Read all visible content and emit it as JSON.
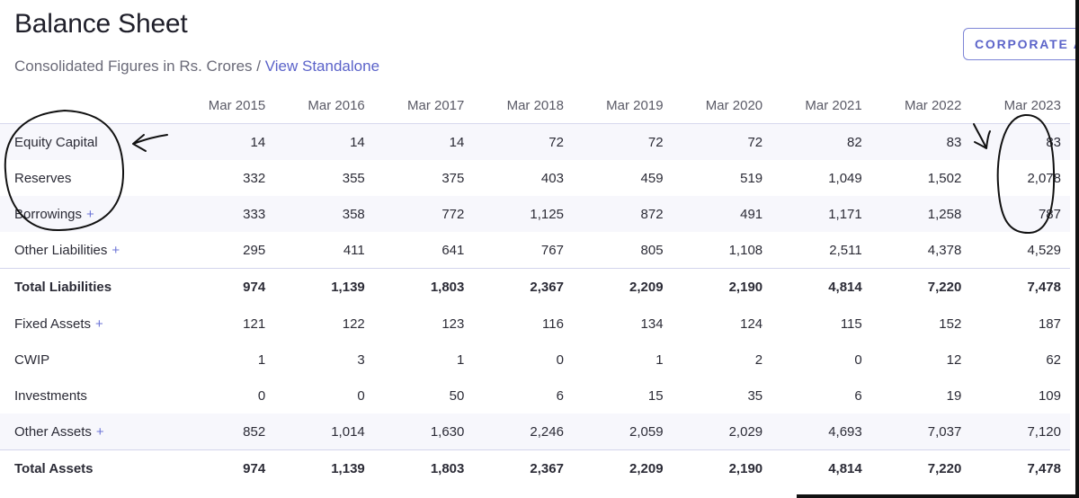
{
  "header": {
    "title": "Balance Sheet",
    "subtitle_prefix": "Consolidated Figures in Rs. Crores / ",
    "subtitle_link": "View Standalone",
    "corporate_button": "CORPORATE A"
  },
  "table": {
    "columns": [
      "Mar 2015",
      "Mar 2016",
      "Mar 2017",
      "Mar 2018",
      "Mar 2019",
      "Mar 2020",
      "Mar 2021",
      "Mar 2022",
      "Mar 2023"
    ],
    "rows": [
      {
        "label": "Equity Capital",
        "expand": "",
        "values": [
          "14",
          "14",
          "14",
          "72",
          "72",
          "72",
          "82",
          "83",
          "83"
        ]
      },
      {
        "label": "Reserves",
        "expand": "",
        "values": [
          "332",
          "355",
          "375",
          "403",
          "459",
          "519",
          "1,049",
          "1,502",
          "2,078"
        ]
      },
      {
        "label": "Borrowings",
        "expand": "+",
        "values": [
          "333",
          "358",
          "772",
          "1,125",
          "872",
          "491",
          "1,171",
          "1,258",
          "787"
        ]
      },
      {
        "label": "Other Liabilities",
        "expand": "+",
        "values": [
          "295",
          "411",
          "641",
          "767",
          "805",
          "1,108",
          "2,511",
          "4,378",
          "4,529"
        ]
      },
      {
        "label": "Total Liabilities",
        "expand": "",
        "values": [
          "974",
          "1,139",
          "1,803",
          "2,367",
          "2,209",
          "2,190",
          "4,814",
          "7,220",
          "7,478"
        ]
      },
      {
        "label": "Fixed Assets",
        "expand": "+",
        "values": [
          "121",
          "122",
          "123",
          "116",
          "134",
          "124",
          "115",
          "152",
          "187"
        ]
      },
      {
        "label": "CWIP",
        "expand": "",
        "values": [
          "1",
          "3",
          "1",
          "0",
          "1",
          "2",
          "0",
          "12",
          "62"
        ]
      },
      {
        "label": "Investments",
        "expand": "",
        "values": [
          "0",
          "0",
          "50",
          "6",
          "15",
          "35",
          "6",
          "19",
          "109"
        ]
      },
      {
        "label": "Other Assets",
        "expand": "+",
        "values": [
          "852",
          "1,014",
          "1,630",
          "2,246",
          "2,059",
          "2,029",
          "4,693",
          "7,037",
          "7,120"
        ]
      },
      {
        "label": "Total Assets",
        "expand": "",
        "values": [
          "974",
          "1,139",
          "1,803",
          "2,367",
          "2,209",
          "2,190",
          "4,814",
          "7,220",
          "7,478"
        ]
      }
    ]
  }
}
